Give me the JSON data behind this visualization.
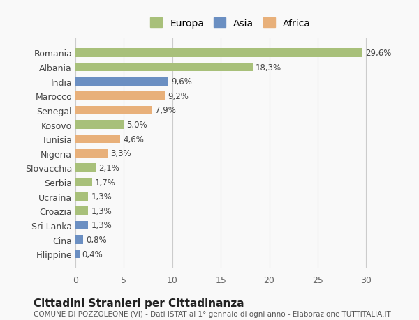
{
  "categories": [
    "Romania",
    "Albania",
    "India",
    "Marocco",
    "Senegal",
    "Kosovo",
    "Tunisia",
    "Nigeria",
    "Slovacchia",
    "Serbia",
    "Ucraina",
    "Croazia",
    "Sri Lanka",
    "Cina",
    "Filippine"
  ],
  "values": [
    29.6,
    18.3,
    9.6,
    9.2,
    7.9,
    5.0,
    4.6,
    3.3,
    2.1,
    1.7,
    1.3,
    1.3,
    1.3,
    0.8,
    0.4
  ],
  "labels": [
    "29,6%",
    "18,3%",
    "9,6%",
    "9,2%",
    "7,9%",
    "5,0%",
    "4,6%",
    "3,3%",
    "2,1%",
    "1,7%",
    "1,3%",
    "1,3%",
    "1,3%",
    "0,8%",
    "0,4%"
  ],
  "colors": [
    "#a8c07a",
    "#a8c07a",
    "#6b8fc2",
    "#e8b07a",
    "#e8b07a",
    "#a8c07a",
    "#e8b07a",
    "#e8b07a",
    "#a8c07a",
    "#a8c07a",
    "#a8c07a",
    "#a8c07a",
    "#6b8fc2",
    "#6b8fc2",
    "#6b8fc2"
  ],
  "legend_labels": [
    "Europa",
    "Asia",
    "Africa"
  ],
  "legend_colors": [
    "#a8c07a",
    "#6b8fc2",
    "#e8b07a"
  ],
  "title": "Cittadini Stranieri per Cittadinanza",
  "subtitle": "COMUNE DI POZZOLEONE (VI) - Dati ISTAT al 1° gennaio di ogni anno - Elaborazione TUTTITALIA.IT",
  "xlim": [
    0,
    32
  ],
  "xticks": [
    0,
    5,
    10,
    15,
    20,
    25,
    30
  ],
  "background_color": "#f9f9f9",
  "grid_color": "#cccccc"
}
